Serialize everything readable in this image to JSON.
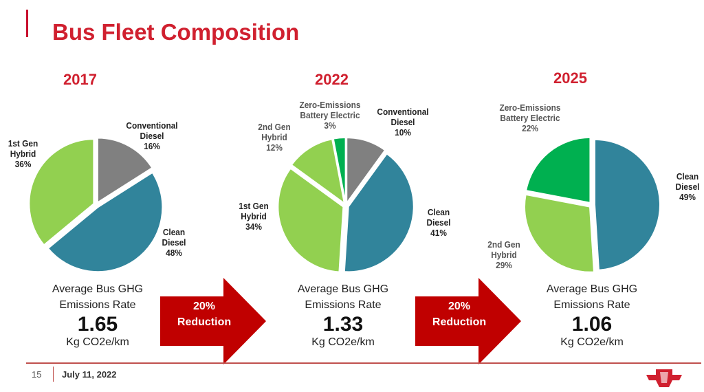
{
  "title": "Bus Fleet Composition",
  "colors": {
    "accent": "#d0202f",
    "conventional_diesel": "#808080",
    "clean_diesel": "#31849B",
    "hybrid": "#92D050",
    "zero_emissions": "#00B050",
    "arrow": "#C00000"
  },
  "chart_data": [
    {
      "type": "pie",
      "title": "2017",
      "slices": [
        {
          "name": "Conventional Diesel",
          "value": 16,
          "label": "Conventional Diesel",
          "pct": "16%",
          "color": "#808080"
        },
        {
          "name": "Clean Diesel",
          "value": 48,
          "label": "Clean Diesel",
          "pct": "48%",
          "color": "#31849B"
        },
        {
          "name": "1st Gen Hybrid",
          "value": 36,
          "label": "1st Gen Hybrid",
          "pct": "36%",
          "color": "#92D050"
        }
      ]
    },
    {
      "type": "pie",
      "title": "2022",
      "slices": [
        {
          "name": "Conventional Diesel",
          "value": 10,
          "label": "Conventional Diesel",
          "pct": "10%",
          "color": "#808080"
        },
        {
          "name": "Clean Diesel",
          "value": 41,
          "label": "Clean Diesel",
          "pct": "41%",
          "color": "#31849B"
        },
        {
          "name": "1st Gen Hybrid",
          "value": 34,
          "label": "1st Gen Hybrid",
          "pct": "34%",
          "color": "#92D050"
        },
        {
          "name": "2nd Gen Hybrid",
          "value": 12,
          "label": "2nd Gen Hybrid",
          "pct": "12%",
          "color": "#92D050"
        },
        {
          "name": "Zero-Emissions Battery Electric",
          "value": 3,
          "label": "Zero-Emissions Battery Electric",
          "pct": "3%",
          "color": "#00B050"
        }
      ]
    },
    {
      "type": "pie",
      "title": "2025",
      "slices": [
        {
          "name": "Clean Diesel",
          "value": 49,
          "label": "Clean Diesel",
          "pct": "49%",
          "color": "#31849B"
        },
        {
          "name": "2nd Gen Hybrid",
          "value": 29,
          "label": "2nd Gen Hybrid",
          "pct": "29%",
          "color": "#92D050"
        },
        {
          "name": "Zero-Emissions Battery Electric",
          "value": 22,
          "label": "Zero-Emissions Battery Electric",
          "pct": "22%",
          "color": "#00B050"
        }
      ]
    }
  ],
  "emissions": [
    {
      "label1": "Average Bus GHG",
      "label2": "Emissions Rate",
      "value": "1.65",
      "unit": "Kg CO2e/km"
    },
    {
      "label1": "Average Bus GHG",
      "label2": "Emissions Rate",
      "value": "1.33",
      "unit": "Kg CO2e/km"
    },
    {
      "label1": "Average Bus GHG",
      "label2": "Emissions Rate",
      "value": "1.06",
      "unit": "Kg CO2e/km"
    }
  ],
  "arrows": [
    {
      "line1": "20%",
      "line2": "Reduction"
    },
    {
      "line1": "20%",
      "line2": "Reduction"
    }
  ],
  "footer": {
    "page": "15",
    "date": "July 11, 2022"
  }
}
